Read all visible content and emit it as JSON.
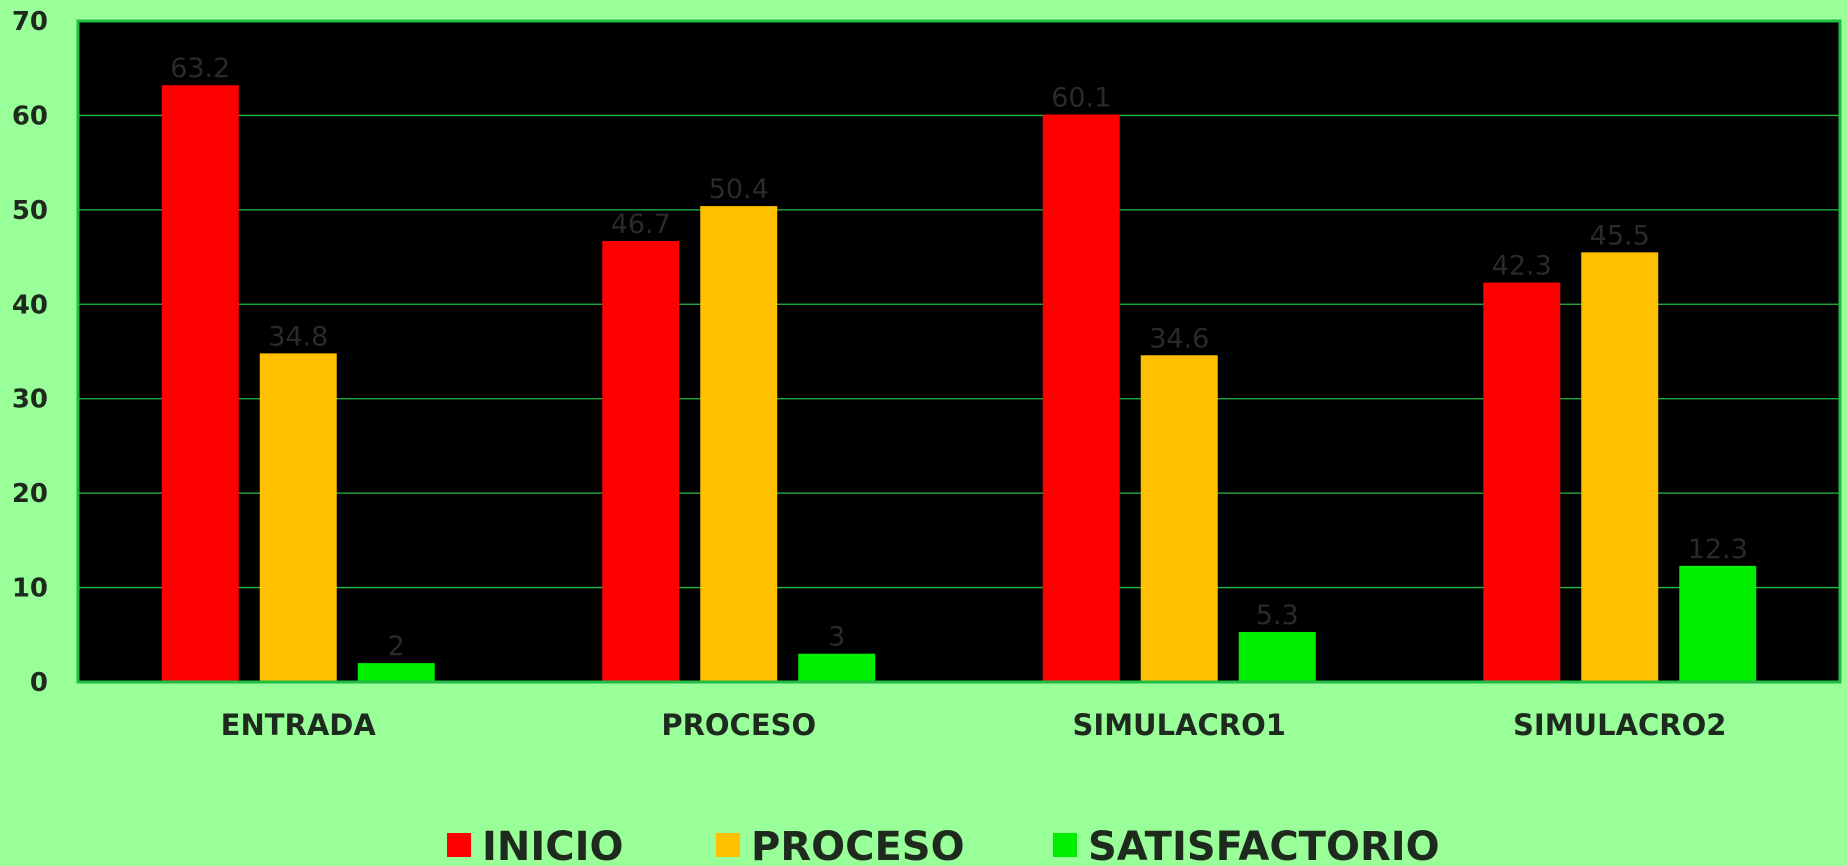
{
  "colors": {
    "background": "#99ff99",
    "plot_background": "#000000",
    "plot_border": "#22bb44",
    "gridline": "#22bb44",
    "INICIO": "#ff0000",
    "PROCESO": "#ffc000",
    "SATISFACTORIO": "#00ee00"
  },
  "chart_data": {
    "type": "bar",
    "title": "",
    "xlabel": "",
    "ylabel": "",
    "categories": [
      "ENTRADA",
      "PROCESO",
      "SIMULACRO1",
      "SIMULACRO2"
    ],
    "series": [
      {
        "name": "INICIO",
        "values": [
          63.2,
          46.7,
          60.1,
          42.3
        ]
      },
      {
        "name": "PROCESO",
        "values": [
          34.8,
          50.4,
          34.6,
          45.5
        ]
      },
      {
        "name": "SATISFACTORIO",
        "values": [
          2,
          3,
          5.3,
          12.3
        ]
      }
    ],
    "data_labels": [
      [
        "63.2",
        "46.7",
        "60.1",
        "42.3"
      ],
      [
        "34.8",
        "50.4",
        "34.6",
        "45.5"
      ],
      [
        "2",
        "3",
        "5.3",
        "12.3"
      ]
    ],
    "ylim": [
      0,
      70
    ],
    "yticks": [
      0,
      10,
      20,
      30,
      40,
      50,
      60,
      70
    ],
    "ytick_labels": [
      "0",
      "10",
      "20",
      "30",
      "40",
      "50",
      "60",
      "70"
    ],
    "grid": true,
    "legend_position": "bottom"
  }
}
